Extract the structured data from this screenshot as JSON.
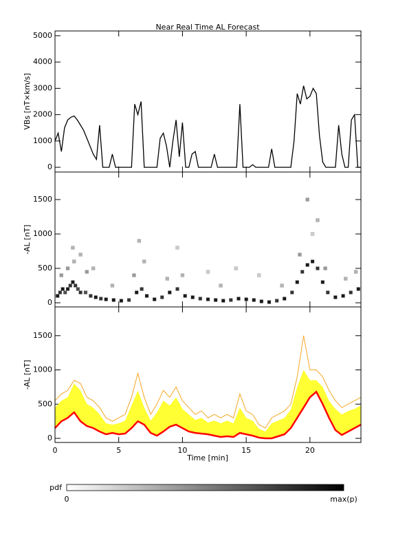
{
  "chart_data": [
    {
      "type": "line",
      "title": "Near Real Time AL Forecast",
      "y_label": "VBs [nT×km/s]",
      "color": "#000000",
      "xlim": [
        0,
        24
      ],
      "xticks": [
        0,
        5,
        10,
        15,
        20
      ],
      "ylim": [
        -180,
        5180
      ],
      "yticks": [
        0,
        1000,
        2000,
        3000,
        4000,
        5000
      ],
      "x": [
        0,
        0.25,
        0.5,
        0.75,
        1,
        1.25,
        1.5,
        1.75,
        2,
        2.25,
        2.5,
        2.75,
        3,
        3.25,
        3.5,
        3.75,
        4,
        4.25,
        4.5,
        4.75,
        5,
        5.25,
        5.5,
        5.75,
        6,
        6.25,
        6.5,
        6.75,
        7,
        7.25,
        7.5,
        7.75,
        8,
        8.25,
        8.5,
        8.75,
        9,
        9.25,
        9.5,
        9.75,
        10,
        10.25,
        10.5,
        10.75,
        11,
        11.25,
        11.5,
        11.75,
        12,
        12.25,
        12.5,
        12.75,
        13,
        13.25,
        13.5,
        13.75,
        14,
        14.25,
        14.5,
        14.75,
        15,
        15.25,
        15.5,
        15.75,
        16,
        16.25,
        16.5,
        16.75,
        17,
        17.25,
        17.5,
        17.75,
        18,
        18.25,
        18.5,
        18.75,
        19,
        19.25,
        19.5,
        19.75,
        20,
        20.25,
        20.5,
        20.75,
        21,
        21.25,
        21.5,
        21.75,
        22,
        22.25,
        22.5,
        22.75,
        23,
        23.25,
        23.5,
        23.75,
        24
      ],
      "values": [
        1000,
        1300,
        600,
        1500,
        1800,
        1900,
        1950,
        1800,
        1600,
        1400,
        1100,
        800,
        500,
        300,
        1600,
        0,
        0,
        0,
        500,
        0,
        0,
        0,
        0,
        0,
        0,
        2400,
        2000,
        2500,
        0,
        0,
        0,
        0,
        0,
        1100,
        1300,
        800,
        0,
        1000,
        1800,
        400,
        1700,
        0,
        0,
        500,
        600,
        0,
        0,
        0,
        0,
        0,
        500,
        0,
        0,
        0,
        0,
        0,
        0,
        0,
        2400,
        0,
        0,
        0,
        100,
        0,
        0,
        0,
        0,
        0,
        700,
        0,
        0,
        0,
        0,
        0,
        0,
        1000,
        2800,
        2400,
        3100,
        2600,
        2700,
        3000,
        2800,
        1200,
        200,
        0,
        0,
        0,
        0,
        1600,
        500,
        0,
        0,
        1800,
        2000,
        0,
        0
      ]
    },
    {
      "type": "density",
      "y_label": "-AL [nT]",
      "xlim": [
        0,
        24
      ],
      "xticks": [
        0,
        5,
        10,
        15,
        20
      ],
      "ylim": [
        -60,
        1900
      ],
      "yticks": [
        0,
        500,
        1000,
        1500
      ],
      "colorbar": {
        "label": "pdf",
        "min_label": "0",
        "max_label": "max(p)",
        "low_color": "#ffffff",
        "high_color": "#000000"
      },
      "x": [
        0.2,
        0.4,
        0.6,
        0.8,
        1.0,
        1.2,
        1.4,
        1.6,
        1.8,
        2.0,
        2.4,
        2.8,
        3.2,
        3.6,
        4.0,
        4.6,
        5.2,
        5.8,
        6.4,
        6.8,
        7.2,
        7.8,
        8.4,
        9.0,
        9.6,
        10.2,
        10.8,
        11.4,
        12.0,
        12.6,
        13.2,
        13.8,
        14.4,
        15.0,
        15.6,
        16.2,
        16.8,
        17.4,
        18.0,
        18.6,
        19.0,
        19.4,
        19.8,
        20.2,
        20.6,
        21.0,
        21.4,
        22.0,
        22.6,
        23.2,
        23.8,
        1.4,
        2.0,
        6.6,
        9.6,
        19.8,
        20.6,
        20.2,
        3.0,
        12.0,
        14.2,
        16.0,
        7.0,
        0.5,
        1.0,
        1.5,
        2.5,
        4.5,
        6.2,
        8.8,
        10.0,
        13.0,
        17.8,
        19.2,
        21.2,
        22.8,
        23.6
      ],
      "y": [
        100,
        150,
        200,
        150,
        200,
        250,
        300,
        250,
        200,
        150,
        150,
        100,
        80,
        60,
        50,
        40,
        30,
        40,
        150,
        200,
        100,
        50,
        80,
        150,
        200,
        100,
        80,
        60,
        50,
        40,
        30,
        40,
        60,
        50,
        40,
        20,
        10,
        30,
        60,
        150,
        300,
        450,
        550,
        600,
        500,
        300,
        150,
        80,
        100,
        150,
        200,
        800,
        700,
        900,
        800,
        1500,
        1200,
        1000,
        500,
        450,
        500,
        400,
        600,
        400,
        500,
        600,
        450,
        250,
        400,
        350,
        400,
        250,
        250,
        700,
        500,
        350,
        450
      ],
      "p": [
        0.9,
        0.8,
        0.9,
        0.7,
        0.9,
        0.8,
        0.9,
        0.8,
        0.7,
        0.8,
        0.7,
        0.8,
        0.9,
        0.8,
        0.9,
        0.9,
        0.9,
        0.8,
        0.9,
        0.8,
        0.9,
        0.9,
        0.8,
        0.9,
        0.8,
        0.9,
        0.9,
        0.8,
        0.9,
        0.9,
        0.9,
        0.8,
        0.9,
        0.9,
        0.9,
        0.9,
        0.9,
        0.8,
        0.9,
        0.8,
        0.9,
        0.8,
        0.9,
        0.9,
        0.8,
        0.9,
        0.8,
        0.9,
        0.9,
        0.8,
        0.9,
        0.3,
        0.3,
        0.3,
        0.2,
        0.4,
        0.3,
        0.2,
        0.3,
        0.2,
        0.2,
        0.2,
        0.3,
        0.4,
        0.4,
        0.3,
        0.4,
        0.3,
        0.4,
        0.3,
        0.3,
        0.3,
        0.3,
        0.4,
        0.4,
        0.3,
        0.3
      ]
    },
    {
      "type": "band",
      "y_label": "-AL [nT]",
      "x_label": "Time [min]",
      "xlim": [
        0,
        24
      ],
      "xticks": [
        0,
        5,
        10,
        15,
        20
      ],
      "ylim": [
        -60,
        1920
      ],
      "yticks": [
        0,
        500,
        1000,
        1500
      ],
      "x": [
        0,
        0.5,
        1,
        1.5,
        2,
        2.5,
        3,
        3.5,
        4,
        4.5,
        5,
        5.5,
        6,
        6.5,
        7,
        7.5,
        8,
        8.5,
        9,
        9.5,
        10,
        10.5,
        11,
        11.5,
        12,
        12.5,
        13,
        13.5,
        14,
        14.5,
        15,
        15.5,
        16,
        16.5,
        17,
        17.5,
        18,
        18.5,
        19,
        19.5,
        20,
        20.5,
        21,
        21.5,
        22,
        22.5,
        23,
        23.5,
        24
      ],
      "series": [
        {
          "kind": "band",
          "color": "#ffff33",
          "low": [
            150,
            250,
            300,
            380,
            250,
            180,
            150,
            100,
            60,
            80,
            60,
            70,
            150,
            250,
            200,
            80,
            40,
            100,
            170,
            200,
            150,
            100,
            80,
            70,
            60,
            40,
            20,
            30,
            20,
            80,
            60,
            40,
            10,
            0,
            0,
            30,
            60,
            150,
            300,
            450,
            600,
            680,
            500,
            300,
            120,
            50,
            100,
            150,
            200
          ],
          "high": [
            450,
            550,
            600,
            800,
            700,
            500,
            450,
            350,
            220,
            200,
            220,
            260,
            480,
            700,
            450,
            260,
            380,
            550,
            480,
            600,
            430,
            350,
            270,
            300,
            230,
            260,
            220,
            260,
            220,
            450,
            300,
            260,
            140,
            100,
            220,
            260,
            300,
            420,
            750,
            1000,
            850,
            850,
            750,
            550,
            430,
            350,
            400,
            430,
            480
          ]
        },
        {
          "kind": "line",
          "color": "#f5a623",
          "values": [
            550,
            650,
            700,
            850,
            800,
            600,
            550,
            450,
            300,
            250,
            300,
            350,
            600,
            950,
            600,
            350,
            500,
            700,
            600,
            750,
            550,
            450,
            350,
            400,
            300,
            350,
            300,
            350,
            300,
            650,
            400,
            350,
            200,
            150,
            300,
            350,
            400,
            500,
            900,
            1500,
            1000,
            1000,
            900,
            700,
            550,
            450,
            500,
            550,
            600
          ]
        },
        {
          "kind": "line",
          "color": "#ff0000",
          "values": [
            150,
            250,
            300,
            380,
            250,
            180,
            150,
            100,
            60,
            80,
            60,
            70,
            150,
            250,
            200,
            80,
            40,
            100,
            170,
            200,
            150,
            100,
            80,
            70,
            60,
            40,
            20,
            30,
            20,
            80,
            60,
            40,
            10,
            0,
            0,
            30,
            60,
            150,
            300,
            450,
            600,
            680,
            500,
            300,
            120,
            50,
            100,
            150,
            200
          ]
        }
      ]
    }
  ]
}
